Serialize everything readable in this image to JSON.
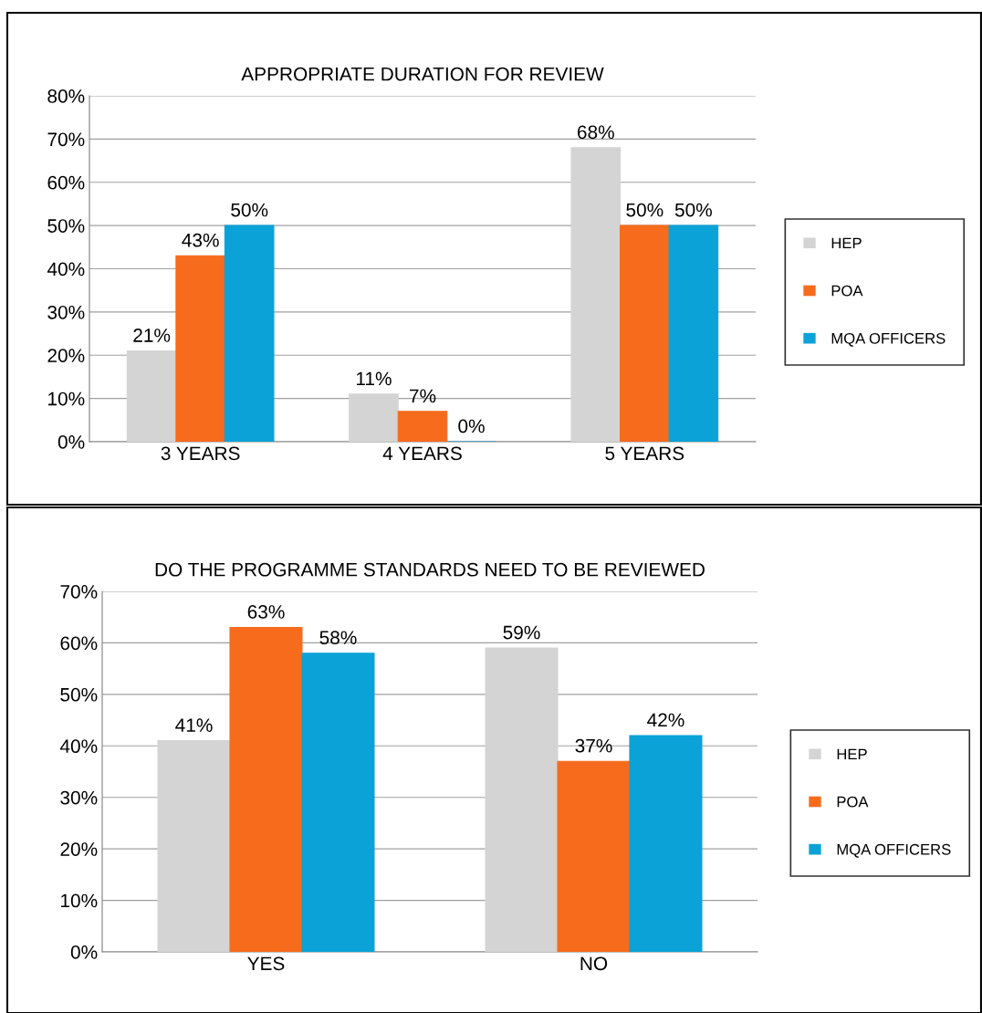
{
  "chart_data": [
    {
      "type": "bar",
      "title": "APPROPRIATE DURATION FOR REVIEW",
      "categories": [
        "3 YEARS",
        "4 YEARS",
        "5 YEARS"
      ],
      "series": [
        {
          "name": "HEP",
          "color": "#d4d4d4",
          "values": [
            21,
            11,
            68
          ],
          "value_labels": [
            "21%",
            "11%",
            "68%"
          ]
        },
        {
          "name": "POA",
          "color": "#f76b1c",
          "values": [
            43,
            7,
            50
          ],
          "value_labels": [
            "43%",
            "7%",
            "50%"
          ]
        },
        {
          "name": "MQA OFFICERS",
          "color": "#0ba2d8",
          "values": [
            50,
            0,
            50
          ],
          "value_labels": [
            "50%",
            "0%",
            "50%"
          ]
        }
      ],
      "ylim": [
        0,
        80
      ],
      "yticks": [
        {
          "value": 0,
          "label": "0%"
        },
        {
          "value": 10,
          "label": "10%"
        },
        {
          "value": 20,
          "label": "20%"
        },
        {
          "value": 30,
          "label": "30%"
        },
        {
          "value": 40,
          "label": "40%"
        },
        {
          "value": 50,
          "label": "50%"
        },
        {
          "value": 60,
          "label": "60%"
        },
        {
          "value": 70,
          "label": "70%"
        },
        {
          "value": 80,
          "label": "80%"
        }
      ],
      "grid": "y",
      "legend": "right"
    },
    {
      "type": "bar",
      "title": "DO THE PROGRAMME STANDARDS NEED TO BE REVIEWED",
      "categories": [
        "YES",
        "NO"
      ],
      "series": [
        {
          "name": "HEP",
          "color": "#d4d4d4",
          "values": [
            41,
            59
          ],
          "value_labels": [
            "41%",
            "59%"
          ]
        },
        {
          "name": "POA",
          "color": "#f76b1c",
          "values": [
            63,
            37
          ],
          "value_labels": [
            "63%",
            "37%"
          ]
        },
        {
          "name": "MQA OFFICERS",
          "color": "#0ba2d8",
          "values": [
            58,
            42
          ],
          "value_labels": [
            "58%",
            "42%"
          ]
        }
      ],
      "ylim": [
        0,
        70
      ],
      "yticks": [
        {
          "value": 0,
          "label": "0%"
        },
        {
          "value": 10,
          "label": "10%"
        },
        {
          "value": 20,
          "label": "20%"
        },
        {
          "value": 30,
          "label": "30%"
        },
        {
          "value": 40,
          "label": "40%"
        },
        {
          "value": 50,
          "label": "50%"
        },
        {
          "value": 60,
          "label": "60%"
        },
        {
          "value": 70,
          "label": "70%"
        }
      ],
      "grid": "y",
      "legend": "right"
    }
  ]
}
